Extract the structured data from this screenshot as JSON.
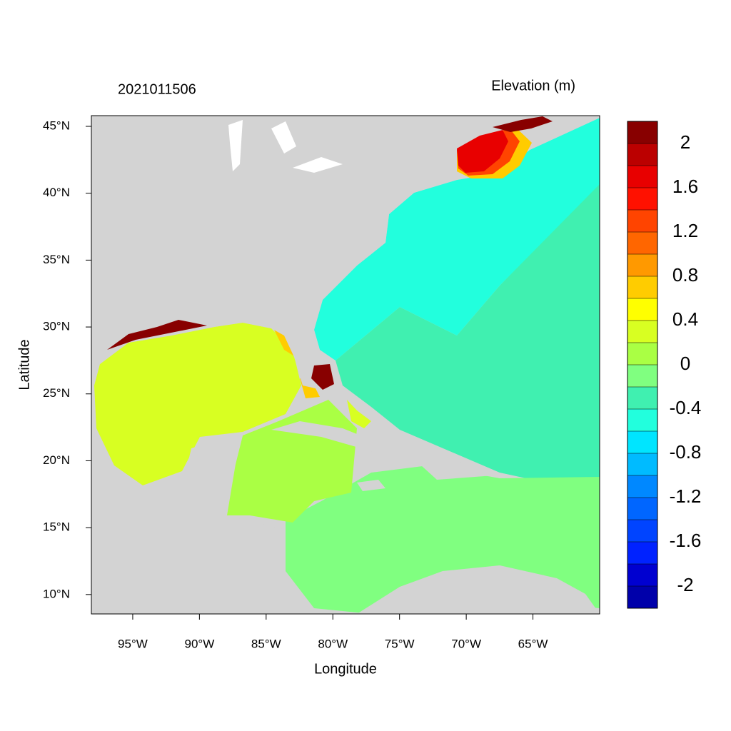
{
  "chart_data": {
    "type": "map",
    "title": "2021011506",
    "subtitle": "Elevation (m)",
    "x_label": "Longitude",
    "y_label": "Latitude",
    "xlim": [
      -98.1,
      -60
    ],
    "ylim": [
      8.55,
      45.8
    ],
    "xticks": [
      {
        "value": -95,
        "label": "95°W"
      },
      {
        "value": -90,
        "label": "90°W"
      },
      {
        "value": -85,
        "label": "85°W"
      },
      {
        "value": -80,
        "label": "80°W"
      },
      {
        "value": -75,
        "label": "75°W"
      },
      {
        "value": -70,
        "label": "70°W"
      },
      {
        "value": -65,
        "label": "65°W"
      }
    ],
    "yticks": [
      {
        "value": 10,
        "label": "10°N"
      },
      {
        "value": 15,
        "label": "15°N"
      },
      {
        "value": 20,
        "label": "20°N"
      },
      {
        "value": 25,
        "label": "25°N"
      },
      {
        "value": 30,
        "label": "30°N"
      },
      {
        "value": 35,
        "label": "35°N"
      },
      {
        "value": 40,
        "label": "40°N"
      },
      {
        "value": 45,
        "label": "45°N"
      }
    ],
    "land_color": "#d3d3d3",
    "colorbar": {
      "levels": [
        -2,
        -1.8,
        -1.6,
        -1.4,
        -1.2,
        -1,
        -0.8,
        -0.6,
        -0.4,
        -0.2,
        0,
        0.2,
        0.4,
        0.6,
        0.8,
        1,
        1.2,
        1.4,
        1.6,
        1.8,
        2
      ],
      "colors": [
        "#0000aa",
        "#0000d0",
        "#0022ff",
        "#0044ff",
        "#0066ff",
        "#0088ff",
        "#00bbff",
        "#00e5ff",
        "#22ffdd",
        "#40f0b0",
        "#80ff80",
        "#aaff44",
        "#d8ff22",
        "#ffff00",
        "#ffcc00",
        "#ff9900",
        "#ff6600",
        "#ff4400",
        "#ff1100",
        "#e80000",
        "#bb0000",
        "#880000"
      ],
      "ticks": [
        -2,
        -1.6,
        -1.2,
        -0.8,
        -0.4,
        0,
        0.4,
        0.8,
        1.2,
        1.6,
        2
      ]
    }
  }
}
